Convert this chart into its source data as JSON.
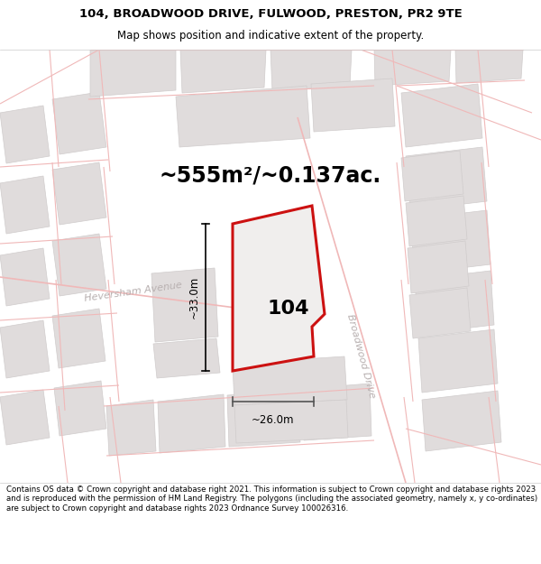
{
  "title": "104, BROADWOOD DRIVE, FULWOOD, PRESTON, PR2 9TE",
  "subtitle": "Map shows position and indicative extent of the property.",
  "area_text": "~555m²/~0.137ac.",
  "label_104": "104",
  "dim_height": "~33.0m",
  "dim_width": "~26.0m",
  "street_heversham": "Heversham Avenue",
  "street_broadwood": "Broadwood Drive",
  "footer": "Contains OS data © Crown copyright and database right 2021. This information is subject to Crown copyright and database rights 2023 and is reproduced with the permission of HM Land Registry. The polygons (including the associated geometry, namely x, y co-ordinates) are subject to Crown copyright and database rights 2023 Ordnance Survey 100026316.",
  "bg_color": "#ffffff",
  "map_bg": "#f8f7f7",
  "plot_fill": "#f0eeed",
  "red_color": "#cc1111",
  "road_color": "#f0b8b8",
  "block_color": "#e0dcdc",
  "block_stroke": "#d0cccc",
  "title_fontsize": 9.5,
  "subtitle_fontsize": 8.5,
  "area_fontsize": 17,
  "label_fontsize": 16,
  "dim_fontsize": 8.5,
  "street_fontsize": 8,
  "footer_fontsize": 6.2
}
